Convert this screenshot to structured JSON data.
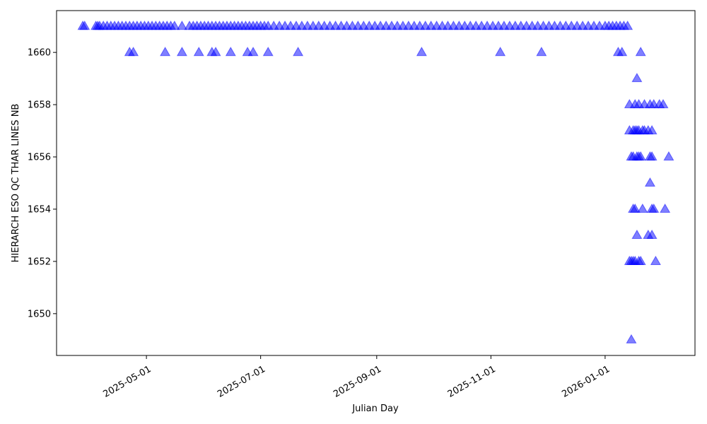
{
  "chart_data": {
    "type": "scatter",
    "xlabel": "Julian Day",
    "ylabel": "HIERARCH ESO QC THAR LINES NB",
    "x_axis_type": "date",
    "xlim": [
      "2025-03-14",
      "2026-02-18"
    ],
    "ylim": [
      1648.4,
      1661.6
    ],
    "x_ticks": [
      "2025-05-01",
      "2025-07-01",
      "2025-09-01",
      "2025-11-01",
      "2026-01-01"
    ],
    "y_ticks": [
      1650,
      1652,
      1654,
      1656,
      1658,
      1660
    ],
    "grid": false,
    "legend": "none",
    "marker": "triangle-up",
    "marker_color": "#0000ff",
    "marker_alpha": 0.5,
    "series": [
      {
        "points": [
          {
            "x": "2025-03-28",
            "y": 1661
          },
          {
            "x": "2025-03-29",
            "y": 1661
          },
          {
            "x": "2025-04-04",
            "y": 1661
          },
          {
            "x": "2025-04-05",
            "y": 1661
          },
          {
            "x": "2025-04-06",
            "y": 1661
          },
          {
            "x": "2025-04-08",
            "y": 1661
          },
          {
            "x": "2025-04-10",
            "y": 1661
          },
          {
            "x": "2025-04-12",
            "y": 1661
          },
          {
            "x": "2025-04-14",
            "y": 1661
          },
          {
            "x": "2025-04-16",
            "y": 1661
          },
          {
            "x": "2025-04-18",
            "y": 1661
          },
          {
            "x": "2025-04-20",
            "y": 1661
          },
          {
            "x": "2025-04-22",
            "y": 1661
          },
          {
            "x": "2025-04-24",
            "y": 1661
          },
          {
            "x": "2025-04-26",
            "y": 1661
          },
          {
            "x": "2025-04-28",
            "y": 1661
          },
          {
            "x": "2025-04-30",
            "y": 1661
          },
          {
            "x": "2025-05-02",
            "y": 1661
          },
          {
            "x": "2025-05-04",
            "y": 1661
          },
          {
            "x": "2025-05-06",
            "y": 1661
          },
          {
            "x": "2025-05-08",
            "y": 1661
          },
          {
            "x": "2025-05-10",
            "y": 1661
          },
          {
            "x": "2025-05-12",
            "y": 1661
          },
          {
            "x": "2025-05-14",
            "y": 1661
          },
          {
            "x": "2025-05-16",
            "y": 1661
          },
          {
            "x": "2025-05-20",
            "y": 1661
          },
          {
            "x": "2025-05-24",
            "y": 1661
          },
          {
            "x": "2025-05-26",
            "y": 1661
          },
          {
            "x": "2025-05-28",
            "y": 1661
          },
          {
            "x": "2025-05-30",
            "y": 1661
          },
          {
            "x": "2025-06-01",
            "y": 1661
          },
          {
            "x": "2025-06-03",
            "y": 1661
          },
          {
            "x": "2025-06-05",
            "y": 1661
          },
          {
            "x": "2025-06-07",
            "y": 1661
          },
          {
            "x": "2025-06-09",
            "y": 1661
          },
          {
            "x": "2025-06-11",
            "y": 1661
          },
          {
            "x": "2025-06-13",
            "y": 1661
          },
          {
            "x": "2025-06-15",
            "y": 1661
          },
          {
            "x": "2025-06-17",
            "y": 1661
          },
          {
            "x": "2025-06-19",
            "y": 1661
          },
          {
            "x": "2025-06-21",
            "y": 1661
          },
          {
            "x": "2025-06-23",
            "y": 1661
          },
          {
            "x": "2025-06-25",
            "y": 1661
          },
          {
            "x": "2025-06-27",
            "y": 1661
          },
          {
            "x": "2025-06-29",
            "y": 1661
          },
          {
            "x": "2025-07-01",
            "y": 1661
          },
          {
            "x": "2025-07-03",
            "y": 1661
          },
          {
            "x": "2025-07-05",
            "y": 1661
          },
          {
            "x": "2025-07-08",
            "y": 1661
          },
          {
            "x": "2025-07-11",
            "y": 1661
          },
          {
            "x": "2025-07-14",
            "y": 1661
          },
          {
            "x": "2025-07-17",
            "y": 1661
          },
          {
            "x": "2025-07-20",
            "y": 1661
          },
          {
            "x": "2025-07-23",
            "y": 1661
          },
          {
            "x": "2025-07-26",
            "y": 1661
          },
          {
            "x": "2025-07-29",
            "y": 1661
          },
          {
            "x": "2025-08-01",
            "y": 1661
          },
          {
            "x": "2025-08-04",
            "y": 1661
          },
          {
            "x": "2025-08-07",
            "y": 1661
          },
          {
            "x": "2025-08-10",
            "y": 1661
          },
          {
            "x": "2025-08-13",
            "y": 1661
          },
          {
            "x": "2025-08-16",
            "y": 1661
          },
          {
            "x": "2025-08-19",
            "y": 1661
          },
          {
            "x": "2025-08-22",
            "y": 1661
          },
          {
            "x": "2025-08-25",
            "y": 1661
          },
          {
            "x": "2025-08-28",
            "y": 1661
          },
          {
            "x": "2025-08-31",
            "y": 1661
          },
          {
            "x": "2025-09-03",
            "y": 1661
          },
          {
            "x": "2025-09-06",
            "y": 1661
          },
          {
            "x": "2025-09-09",
            "y": 1661
          },
          {
            "x": "2025-09-12",
            "y": 1661
          },
          {
            "x": "2025-09-15",
            "y": 1661
          },
          {
            "x": "2025-09-18",
            "y": 1661
          },
          {
            "x": "2025-09-21",
            "y": 1661
          },
          {
            "x": "2025-09-24",
            "y": 1661
          },
          {
            "x": "2025-09-27",
            "y": 1661
          },
          {
            "x": "2025-09-30",
            "y": 1661
          },
          {
            "x": "2025-10-03",
            "y": 1661
          },
          {
            "x": "2025-10-06",
            "y": 1661
          },
          {
            "x": "2025-10-09",
            "y": 1661
          },
          {
            "x": "2025-10-12",
            "y": 1661
          },
          {
            "x": "2025-10-15",
            "y": 1661
          },
          {
            "x": "2025-10-18",
            "y": 1661
          },
          {
            "x": "2025-10-21",
            "y": 1661
          },
          {
            "x": "2025-10-24",
            "y": 1661
          },
          {
            "x": "2025-10-27",
            "y": 1661
          },
          {
            "x": "2025-10-30",
            "y": 1661
          },
          {
            "x": "2025-11-02",
            "y": 1661
          },
          {
            "x": "2025-11-05",
            "y": 1661
          },
          {
            "x": "2025-11-08",
            "y": 1661
          },
          {
            "x": "2025-11-11",
            "y": 1661
          },
          {
            "x": "2025-11-14",
            "y": 1661
          },
          {
            "x": "2025-11-17",
            "y": 1661
          },
          {
            "x": "2025-11-20",
            "y": 1661
          },
          {
            "x": "2025-11-23",
            "y": 1661
          },
          {
            "x": "2025-11-26",
            "y": 1661
          },
          {
            "x": "2025-11-29",
            "y": 1661
          },
          {
            "x": "2025-12-02",
            "y": 1661
          },
          {
            "x": "2025-12-05",
            "y": 1661
          },
          {
            "x": "2025-12-08",
            "y": 1661
          },
          {
            "x": "2025-12-11",
            "y": 1661
          },
          {
            "x": "2025-12-14",
            "y": 1661
          },
          {
            "x": "2025-12-17",
            "y": 1661
          },
          {
            "x": "2025-12-20",
            "y": 1661
          },
          {
            "x": "2025-12-23",
            "y": 1661
          },
          {
            "x": "2025-12-26",
            "y": 1661
          },
          {
            "x": "2025-12-29",
            "y": 1661
          },
          {
            "x": "2026-01-01",
            "y": 1661
          },
          {
            "x": "2026-01-03",
            "y": 1661
          },
          {
            "x": "2026-01-05",
            "y": 1661
          },
          {
            "x": "2026-01-07",
            "y": 1661
          },
          {
            "x": "2026-01-09",
            "y": 1661
          },
          {
            "x": "2026-01-11",
            "y": 1661
          },
          {
            "x": "2026-01-13",
            "y": 1661
          },
          {
            "x": "2025-04-22",
            "y": 1660
          },
          {
            "x": "2025-04-24",
            "y": 1660
          },
          {
            "x": "2025-05-11",
            "y": 1660
          },
          {
            "x": "2025-05-20",
            "y": 1660
          },
          {
            "x": "2025-05-29",
            "y": 1660
          },
          {
            "x": "2025-06-05",
            "y": 1660
          },
          {
            "x": "2025-06-07",
            "y": 1660
          },
          {
            "x": "2025-06-15",
            "y": 1660
          },
          {
            "x": "2025-06-24",
            "y": 1660
          },
          {
            "x": "2025-06-27",
            "y": 1660
          },
          {
            "x": "2025-07-05",
            "y": 1660
          },
          {
            "x": "2025-07-21",
            "y": 1660
          },
          {
            "x": "2025-09-25",
            "y": 1660
          },
          {
            "x": "2025-11-06",
            "y": 1660
          },
          {
            "x": "2025-11-28",
            "y": 1660
          },
          {
            "x": "2026-01-08",
            "y": 1660
          },
          {
            "x": "2026-01-10",
            "y": 1660
          },
          {
            "x": "2026-01-20",
            "y": 1660
          },
          {
            "x": "2026-01-18",
            "y": 1659
          },
          {
            "x": "2026-01-14",
            "y": 1658
          },
          {
            "x": "2026-01-17",
            "y": 1658
          },
          {
            "x": "2026-01-19",
            "y": 1658
          },
          {
            "x": "2026-01-22",
            "y": 1658
          },
          {
            "x": "2026-01-25",
            "y": 1658
          },
          {
            "x": "2026-01-27",
            "y": 1658
          },
          {
            "x": "2026-01-30",
            "y": 1658
          },
          {
            "x": "2026-02-01",
            "y": 1658
          },
          {
            "x": "2026-01-14",
            "y": 1657
          },
          {
            "x": "2026-01-16",
            "y": 1657
          },
          {
            "x": "2026-01-17",
            "y": 1657
          },
          {
            "x": "2026-01-18",
            "y": 1657
          },
          {
            "x": "2026-01-19",
            "y": 1657
          },
          {
            "x": "2026-01-21",
            "y": 1657
          },
          {
            "x": "2026-01-22",
            "y": 1657
          },
          {
            "x": "2026-01-24",
            "y": 1657
          },
          {
            "x": "2026-01-26",
            "y": 1657
          },
          {
            "x": "2026-01-15",
            "y": 1656
          },
          {
            "x": "2026-01-16",
            "y": 1656
          },
          {
            "x": "2026-01-18",
            "y": 1656
          },
          {
            "x": "2026-01-19",
            "y": 1656
          },
          {
            "x": "2026-01-20",
            "y": 1656
          },
          {
            "x": "2026-01-25",
            "y": 1656
          },
          {
            "x": "2026-01-26",
            "y": 1656
          },
          {
            "x": "2026-02-04",
            "y": 1656
          },
          {
            "x": "2026-01-25",
            "y": 1655
          },
          {
            "x": "2026-01-16",
            "y": 1654
          },
          {
            "x": "2026-01-17",
            "y": 1654
          },
          {
            "x": "2026-01-21",
            "y": 1654
          },
          {
            "x": "2026-01-26",
            "y": 1654
          },
          {
            "x": "2026-01-27",
            "y": 1654
          },
          {
            "x": "2026-02-02",
            "y": 1654
          },
          {
            "x": "2026-01-18",
            "y": 1653
          },
          {
            "x": "2026-01-24",
            "y": 1653
          },
          {
            "x": "2026-01-26",
            "y": 1653
          },
          {
            "x": "2026-01-14",
            "y": 1652
          },
          {
            "x": "2026-01-15",
            "y": 1652
          },
          {
            "x": "2026-01-16",
            "y": 1652
          },
          {
            "x": "2026-01-17",
            "y": 1652
          },
          {
            "x": "2026-01-19",
            "y": 1652
          },
          {
            "x": "2026-01-20",
            "y": 1652
          },
          {
            "x": "2026-01-28",
            "y": 1652
          },
          {
            "x": "2026-01-15",
            "y": 1649
          }
        ]
      }
    ]
  }
}
